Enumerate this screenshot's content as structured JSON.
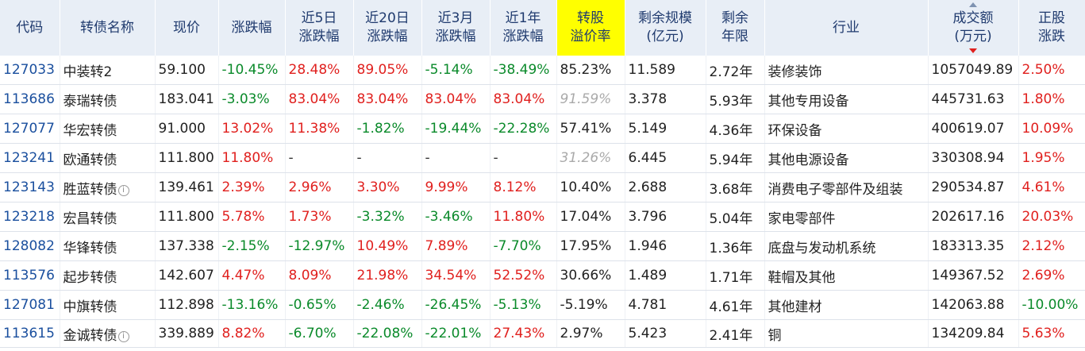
{
  "header": [
    {
      "key": "code",
      "label": "代码"
    },
    {
      "key": "name",
      "label": "转债名称"
    },
    {
      "key": "price",
      "label": "现价"
    },
    {
      "key": "change",
      "label": "涨跌幅"
    },
    {
      "key": "change5d",
      "label": "近5日\n涨跌幅"
    },
    {
      "key": "change20d",
      "label": "近20日\n涨跌幅"
    },
    {
      "key": "change3m",
      "label": "近3月\n涨跌幅"
    },
    {
      "key": "change1y",
      "label": "近1年\n涨跌幅"
    },
    {
      "key": "premium",
      "label": "转股\n溢价率",
      "highlight": true
    },
    {
      "key": "scale",
      "label": "剩余规模\n(亿元)"
    },
    {
      "key": "years",
      "label": "剩余\n年限"
    },
    {
      "key": "industry",
      "label": "行业"
    },
    {
      "key": "turnover",
      "label": "成交额\n(万元)",
      "sorted": "desc"
    },
    {
      "key": "stock_change",
      "label": "正股\n涨跌"
    }
  ],
  "rows": [
    {
      "code": "127033",
      "name": "中装转2",
      "info": false,
      "price": "59.100",
      "change": "-10.45%",
      "change5d": "28.48%",
      "change20d": "89.05%",
      "change3m": "-5.14%",
      "change1y": "-38.49%",
      "premium": "85.23%",
      "premium_muted": false,
      "scale": "11.589",
      "years": "2.72年",
      "industry": "装修装饰",
      "turnover": "1057049.89",
      "stock_change": "2.50%"
    },
    {
      "code": "113686",
      "name": "泰瑞转债",
      "info": false,
      "price": "183.041",
      "change": "-3.03%",
      "change5d": "83.04%",
      "change20d": "83.04%",
      "change3m": "83.04%",
      "change1y": "83.04%",
      "premium": "91.59%",
      "premium_muted": true,
      "scale": "3.378",
      "years": "5.93年",
      "industry": "其他专用设备",
      "turnover": "445731.63",
      "stock_change": "1.80%"
    },
    {
      "code": "127077",
      "name": "华宏转债",
      "info": false,
      "price": "91.000",
      "change": "13.02%",
      "change5d": "11.38%",
      "change20d": "-1.82%",
      "change3m": "-19.44%",
      "change1y": "-22.28%",
      "premium": "57.41%",
      "premium_muted": false,
      "scale": "5.149",
      "years": "4.36年",
      "industry": "环保设备",
      "turnover": "400619.07",
      "stock_change": "10.09%"
    },
    {
      "code": "123241",
      "name": "欧通转债",
      "info": false,
      "price": "111.800",
      "change": "11.80%",
      "change5d": "-",
      "change20d": "-",
      "change3m": "-",
      "change1y": "-",
      "premium": "31.26%",
      "premium_muted": true,
      "scale": "6.445",
      "years": "5.94年",
      "industry": "其他电源设备",
      "turnover": "330308.94",
      "stock_change": "1.95%"
    },
    {
      "code": "123143",
      "name": "胜蓝转债",
      "info": true,
      "price": "139.461",
      "change": "2.39%",
      "change5d": "2.96%",
      "change20d": "3.30%",
      "change3m": "9.99%",
      "change1y": "8.12%",
      "premium": "10.40%",
      "premium_muted": false,
      "scale": "2.688",
      "years": "3.68年",
      "industry": "消费电子零部件及组装",
      "turnover": "290534.87",
      "stock_change": "4.61%"
    },
    {
      "code": "123218",
      "name": "宏昌转债",
      "info": false,
      "price": "111.800",
      "change": "5.78%",
      "change5d": "1.73%",
      "change20d": "-3.32%",
      "change3m": "-3.46%",
      "change1y": "11.80%",
      "premium": "17.04%",
      "premium_muted": false,
      "scale": "3.796",
      "years": "5.04年",
      "industry": "家电零部件",
      "turnover": "202617.16",
      "stock_change": "20.03%"
    },
    {
      "code": "128082",
      "name": "华锋转债",
      "info": false,
      "price": "137.338",
      "change": "-2.15%",
      "change5d": "-12.97%",
      "change20d": "10.49%",
      "change3m": "7.89%",
      "change1y": "-7.70%",
      "premium": "17.95%",
      "premium_muted": false,
      "scale": "1.946",
      "years": "1.36年",
      "industry": "底盘与发动机系统",
      "turnover": "183313.35",
      "stock_change": "2.12%"
    },
    {
      "code": "113576",
      "name": "起步转债",
      "info": false,
      "price": "142.607",
      "change": "4.47%",
      "change5d": "8.09%",
      "change20d": "21.98%",
      "change3m": "34.54%",
      "change1y": "52.52%",
      "premium": "30.66%",
      "premium_muted": false,
      "scale": "1.489",
      "years": "1.71年",
      "industry": "鞋帽及其他",
      "turnover": "149367.52",
      "stock_change": "2.69%"
    },
    {
      "code": "127081",
      "name": "中旗转债",
      "info": false,
      "price": "112.898",
      "change": "-13.16%",
      "change5d": "-0.65%",
      "change20d": "-2.46%",
      "change3m": "-26.45%",
      "change1y": "-5.13%",
      "premium": "-5.19%",
      "premium_muted": false,
      "scale": "4.781",
      "years": "4.61年",
      "industry": "其他建材",
      "turnover": "142063.88",
      "stock_change": "-10.00%"
    },
    {
      "code": "113615",
      "name": "金诚转债",
      "info": true,
      "price": "339.889",
      "change": "8.82%",
      "change5d": "-6.70%",
      "change20d": "-22.08%",
      "change3m": "-22.01%",
      "change1y": "27.43%",
      "premium": "2.97%",
      "premium_muted": false,
      "scale": "5.423",
      "years": "2.41年",
      "industry": "铜",
      "turnover": "134209.84",
      "stock_change": "5.63%"
    }
  ],
  "icons": {
    "info": "info-icon",
    "sort_up": "sort-ascending-icon",
    "sort_down": "sort-descending-icon"
  },
  "info_glyph": "i",
  "colors": {
    "up": "#e0201e",
    "down": "#0a8a2a",
    "header_bg": "#e8eef6",
    "highlight": "#ffff00",
    "code": "#1a4f9e"
  }
}
